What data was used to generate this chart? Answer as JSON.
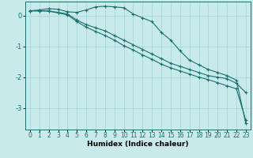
{
  "xlabel": "Humidex (Indice chaleur)",
  "bg_color": "#c8eaea",
  "grid_color": "#a8d8d8",
  "line_color": "#1a7070",
  "ylim": [
    -3.7,
    0.45
  ],
  "xlim": [
    -0.5,
    23.5
  ],
  "yticks": [
    0,
    -1,
    -2,
    -3
  ],
  "xticks": [
    0,
    1,
    2,
    3,
    4,
    5,
    6,
    7,
    8,
    9,
    10,
    11,
    12,
    13,
    14,
    15,
    16,
    17,
    18,
    19,
    20,
    21,
    22,
    23
  ],
  "line1_x": [
    0,
    1,
    2,
    3,
    4,
    5,
    6,
    7,
    8,
    9,
    10,
    11,
    12,
    13,
    14,
    15,
    16,
    17,
    18,
    19,
    20,
    21,
    22,
    23
  ],
  "line1_y": [
    0.15,
    0.18,
    0.22,
    0.2,
    0.12,
    0.1,
    0.18,
    0.28,
    0.3,
    0.28,
    0.25,
    0.05,
    -0.08,
    -0.2,
    -0.55,
    -0.8,
    -1.15,
    -1.45,
    -1.6,
    -1.75,
    -1.85,
    -1.95,
    -2.1,
    -3.5
  ],
  "line2_x": [
    0,
    1,
    2,
    3,
    4,
    5,
    6,
    7,
    8,
    9,
    10,
    11,
    12,
    13,
    14,
    15,
    16,
    17,
    18,
    19,
    20,
    21,
    22,
    23
  ],
  "line2_y": [
    0.15,
    0.15,
    0.15,
    0.1,
    0.05,
    -0.15,
    -0.3,
    -0.4,
    -0.5,
    -0.65,
    -0.8,
    -0.95,
    -1.1,
    -1.25,
    -1.4,
    -1.55,
    -1.65,
    -1.75,
    -1.85,
    -1.95,
    -2.0,
    -2.05,
    -2.2,
    -2.5
  ],
  "line3_x": [
    0,
    1,
    2,
    3,
    4,
    5,
    6,
    7,
    8,
    9,
    10,
    11,
    12,
    13,
    14,
    15,
    16,
    17,
    18,
    19,
    20,
    21,
    22,
    23
  ],
  "line3_y": [
    0.15,
    0.15,
    0.14,
    0.08,
    0.02,
    -0.2,
    -0.38,
    -0.52,
    -0.65,
    -0.8,
    -0.98,
    -1.12,
    -1.28,
    -1.42,
    -1.58,
    -1.7,
    -1.8,
    -1.9,
    -2.0,
    -2.08,
    -2.18,
    -2.28,
    -2.38,
    -3.4
  ],
  "marker": "+",
  "markersize": 3,
  "linewidth": 0.8,
  "tick_fontsize": 5.5,
  "xlabel_fontsize": 6.5
}
